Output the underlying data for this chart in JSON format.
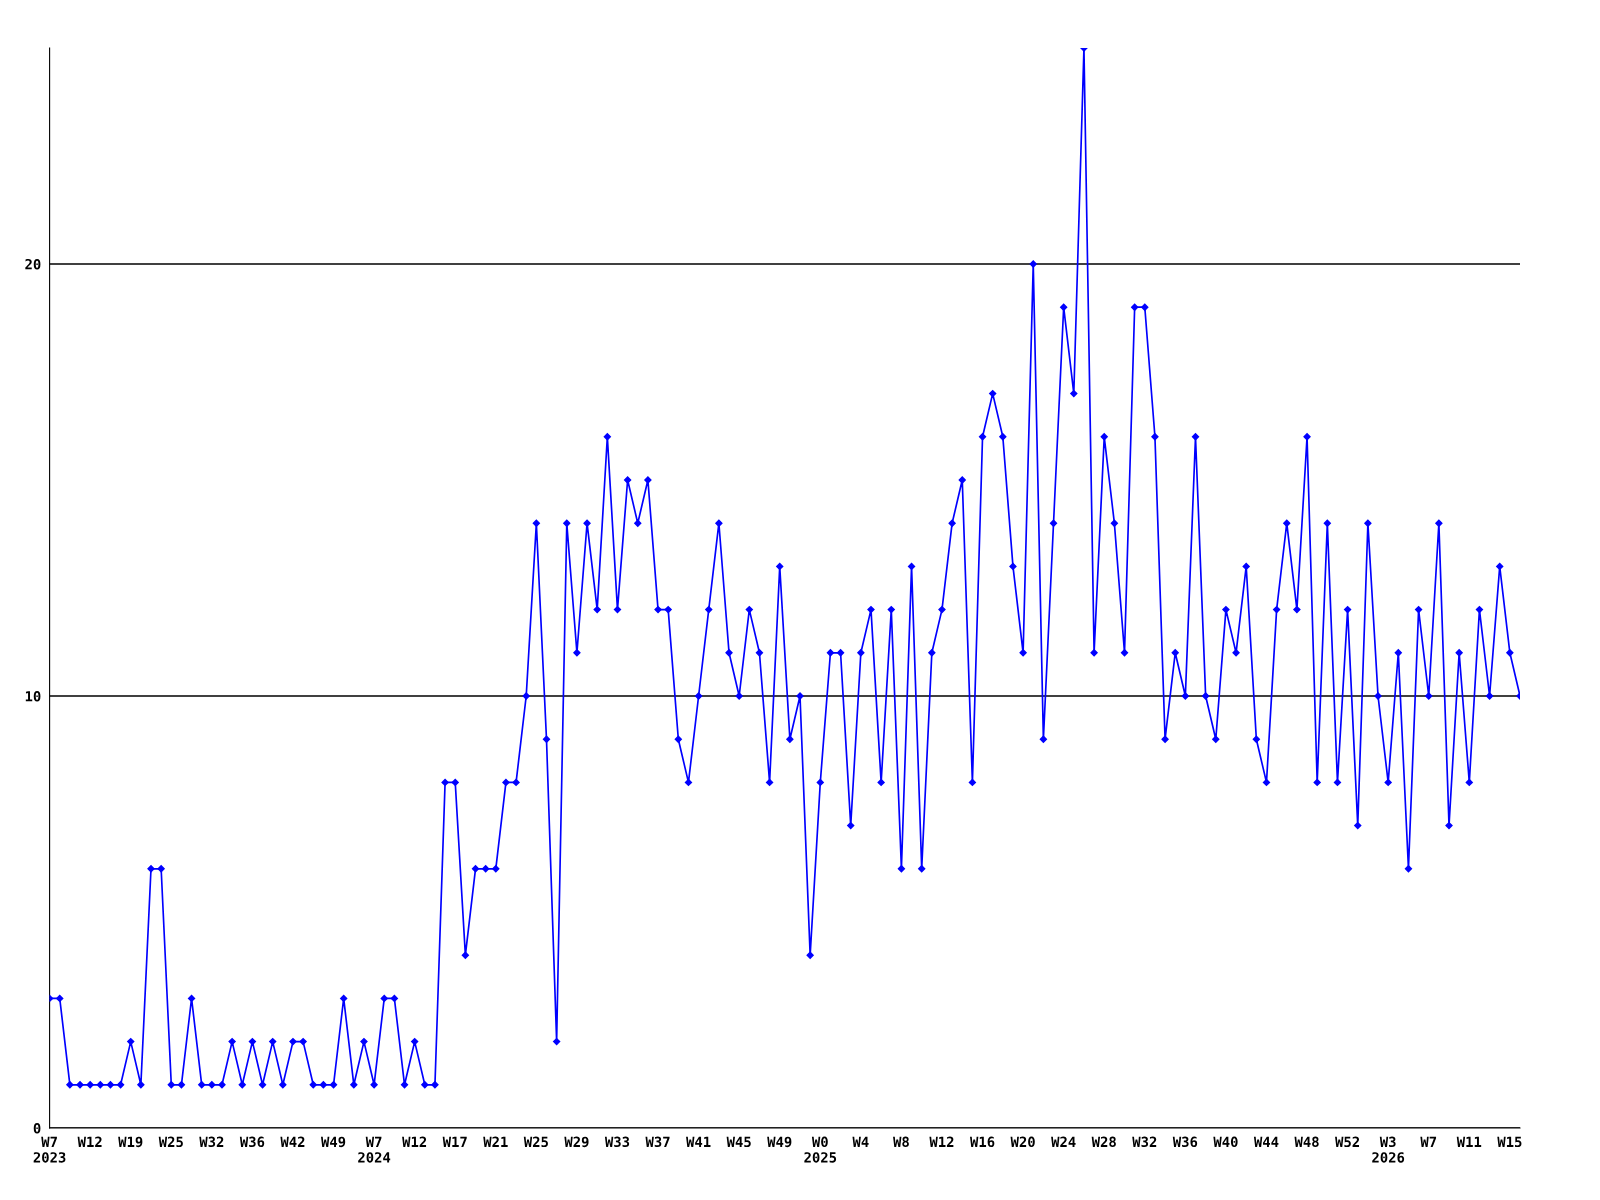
{
  "chart_data": {
    "type": "line",
    "categories": [
      "W7\n2023",
      null,
      null,
      null,
      "W12",
      null,
      null,
      null,
      "W19",
      null,
      null,
      null,
      "W25",
      null,
      null,
      null,
      "W32",
      null,
      null,
      null,
      "W36",
      null,
      null,
      null,
      "W42",
      null,
      null,
      null,
      "W49",
      null,
      null,
      null,
      "W7\n2024",
      null,
      null,
      null,
      "W12",
      null,
      null,
      null,
      "W17",
      null,
      null,
      null,
      "W21",
      null,
      null,
      null,
      "W25",
      null,
      null,
      null,
      "W29",
      null,
      null,
      null,
      "W33",
      null,
      null,
      null,
      "W37",
      null,
      null,
      null,
      "W41",
      null,
      null,
      null,
      "W45",
      null,
      null,
      null,
      "W49",
      null,
      null,
      null,
      "W0\n2025",
      null,
      null,
      null,
      "W4",
      null,
      null,
      null,
      "W8",
      null,
      null,
      null,
      "W12",
      null,
      null,
      null,
      "W16",
      null,
      null,
      null,
      "W20",
      null,
      null,
      null,
      "W24",
      null,
      null,
      null,
      "W28",
      null,
      null,
      null,
      "W32",
      null,
      null,
      null,
      "W36",
      null,
      null,
      null,
      "W40",
      null,
      null,
      null,
      "W44",
      null,
      null,
      null,
      "W48",
      null,
      null,
      null,
      "W52",
      null,
      null,
      null,
      "W3\n2026",
      null,
      null,
      null,
      "W7",
      null,
      null,
      null,
      "W11",
      null,
      null,
      null,
      "W15",
      null
    ],
    "series": [
      {
        "color": "#0000ff",
        "values": [
          3,
          3,
          1,
          1,
          1,
          1,
          1,
          1,
          2,
          1,
          6,
          6,
          1,
          1,
          3,
          1,
          1,
          1,
          2,
          1,
          2,
          1,
          2,
          1,
          2,
          2,
          1,
          1,
          1,
          3,
          1,
          2,
          1,
          3,
          3,
          1,
          2,
          1,
          1,
          8,
          8,
          4,
          6,
          6,
          6,
          8,
          8,
          10,
          14,
          9,
          2,
          14,
          11,
          14,
          12,
          16,
          12,
          15,
          14,
          15,
          12,
          12,
          9,
          8,
          10,
          12,
          14,
          11,
          10,
          12,
          11,
          8,
          13,
          9,
          10,
          4,
          8,
          11,
          11,
          7,
          11,
          12,
          8,
          12,
          6,
          13,
          6,
          11,
          12,
          14,
          15,
          8,
          16,
          17,
          16,
          13,
          11,
          20,
          9,
          14,
          19,
          17,
          25,
          11,
          16,
          14,
          11,
          19,
          19,
          16,
          9,
          11,
          10,
          16,
          10,
          9,
          12,
          11,
          13,
          9,
          8,
          12,
          14,
          12,
          16,
          8,
          14,
          8,
          12,
          7,
          14,
          10,
          8,
          11,
          6,
          12,
          10,
          14,
          7,
          11,
          8,
          12,
          10,
          13,
          11,
          10
        ]
      }
    ],
    "ylim": [
      0,
      25
    ],
    "yticks": [
      0,
      10,
      20
    ],
    "grid": "y",
    "marker": "diamond",
    "line_style": "solid",
    "legend": false
  }
}
